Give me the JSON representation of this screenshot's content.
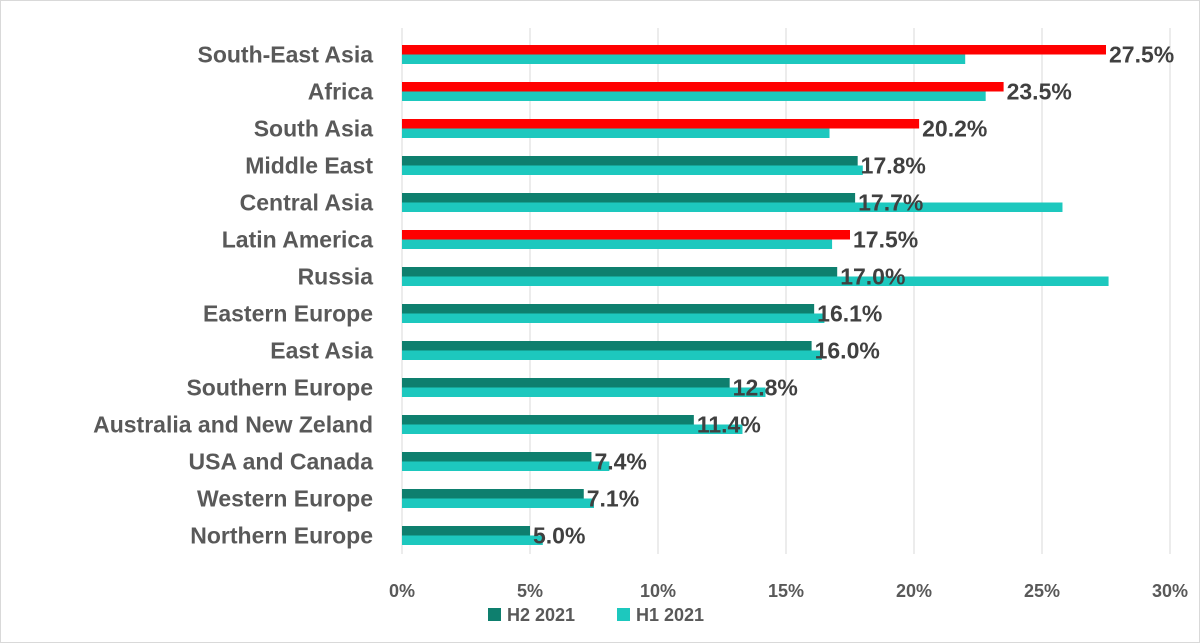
{
  "chart_data": {
    "type": "bar",
    "orientation": "horizontal",
    "categories": [
      "South-East Asia",
      "Africa",
      "South Asia",
      "Middle East",
      "Central Asia",
      "Latin America",
      "Russia",
      "Eastern Europe",
      "East Asia",
      "Southern Europe",
      "Australia and New Zeland",
      "USA and Canada",
      "Western Europe",
      "Northern Europe"
    ],
    "series": [
      {
        "name": "H2 2021",
        "color": "#0E7F6E",
        "values": [
          27.5,
          23.5,
          20.2,
          17.8,
          17.7,
          17.5,
          17.0,
          16.1,
          16.0,
          12.8,
          11.4,
          7.4,
          7.1,
          5.0
        ],
        "value_labels": [
          "27.5%",
          "23.5%",
          "20.2%",
          "17.8%",
          "17.7%",
          "17.5%",
          "17.0%",
          "16.1%",
          "16.0%",
          "12.8%",
          "11.4%",
          "7.4%",
          "7.1%",
          "5.0%"
        ],
        "highlight_color": "#FF0000",
        "highlighted": [
          "South-East Asia",
          "Africa",
          "South Asia",
          "Latin America"
        ]
      },
      {
        "name": "H1 2021",
        "color": "#1DC8BE",
        "values": [
          22.0,
          22.8,
          16.7,
          18.0,
          25.8,
          16.8,
          27.6,
          16.5,
          16.4,
          14.2,
          13.3,
          8.1,
          7.5,
          5.5
        ]
      }
    ],
    "xlim": [
      0,
      30
    ],
    "x_ticks": [
      "0%",
      "5%",
      "10%",
      "15%",
      "20%",
      "25%",
      "30%"
    ],
    "grid": "vertical",
    "legend_position": "bottom"
  }
}
